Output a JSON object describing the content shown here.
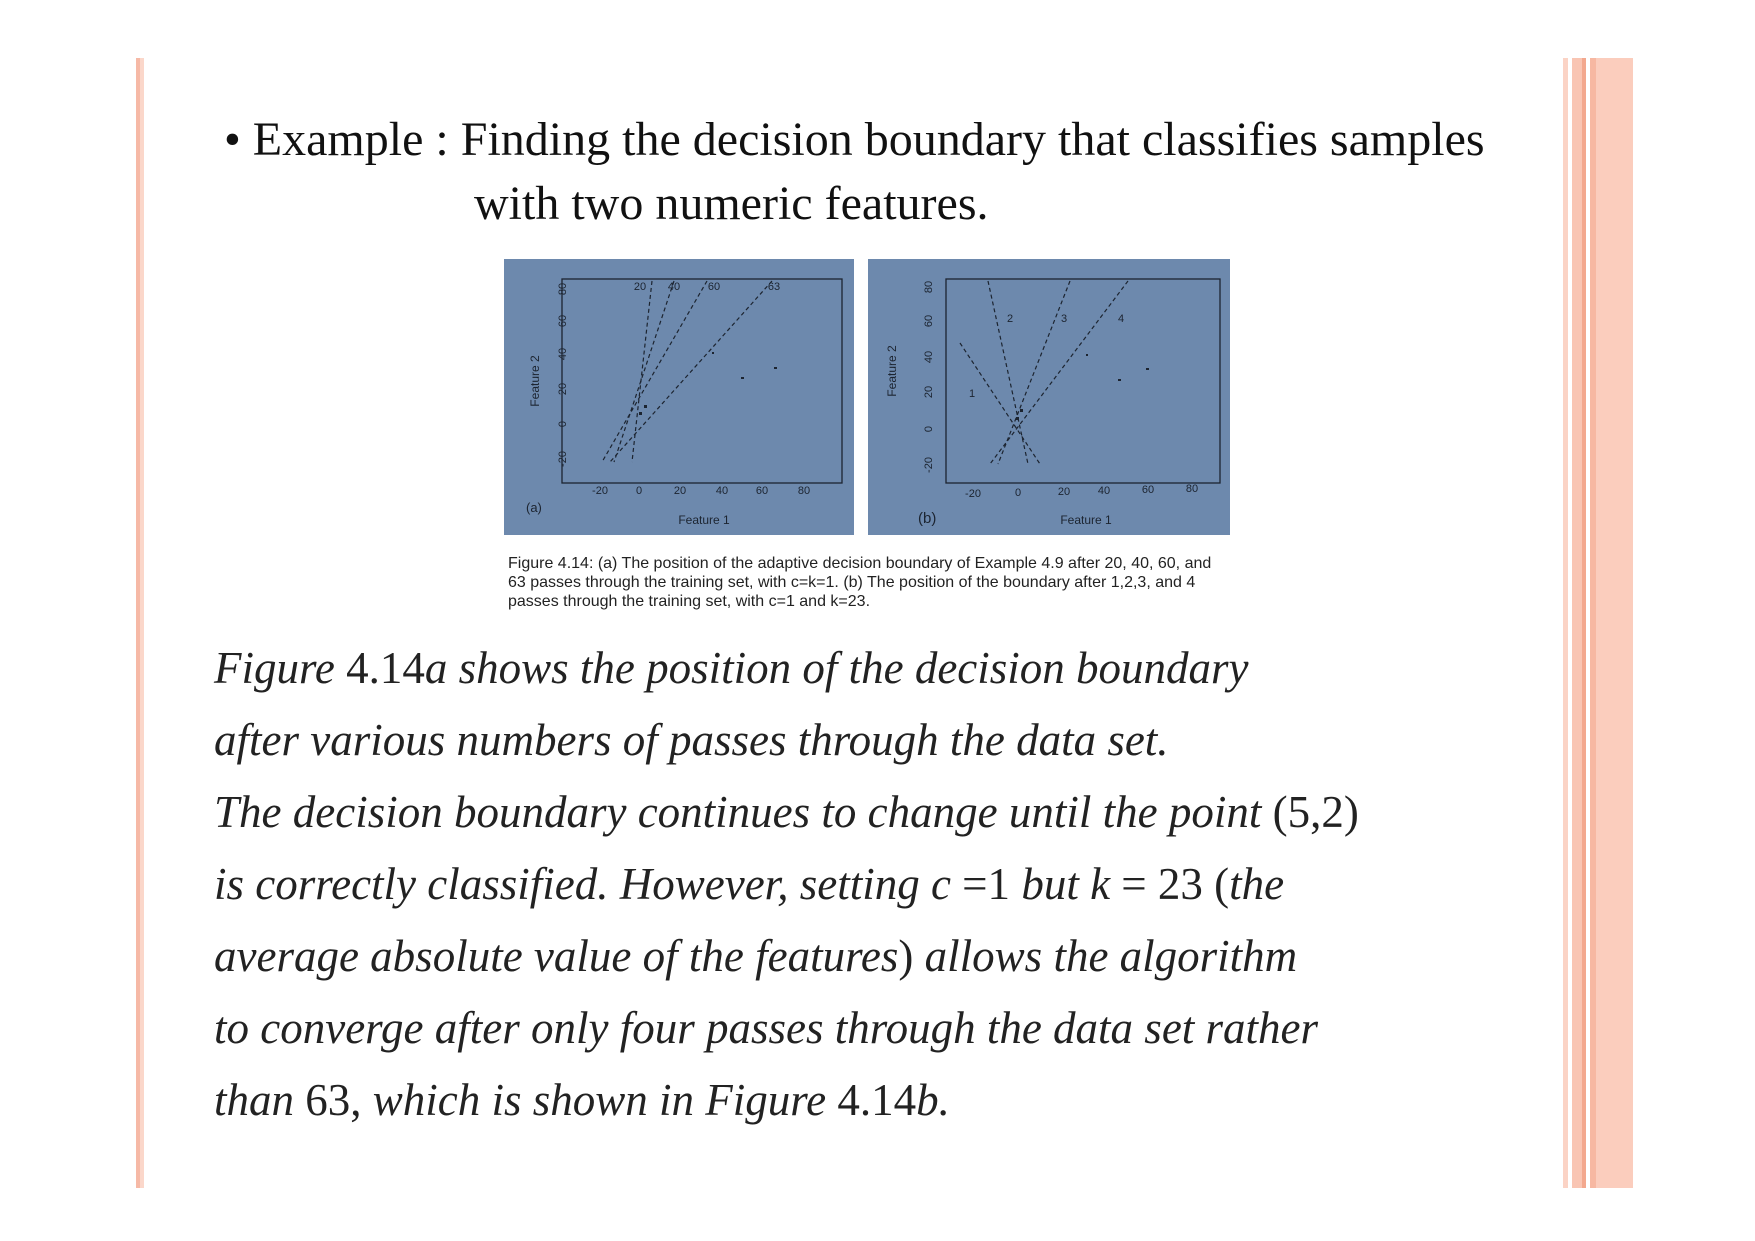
{
  "slide": {
    "bullet_prefix": "• Example : ",
    "title_line1": "Finding the decision boundary that classifies samples",
    "title_line2": "with two numeric features."
  },
  "figure_a": {
    "panel_label": "(a)",
    "xlabel": "Feature 1",
    "ylabel": "Feature 2",
    "x_ticks": [
      "-20",
      "0",
      "20",
      "40",
      "60",
      "80"
    ],
    "y_ticks": [
      "-20",
      "0",
      "20",
      "40",
      "60",
      "80"
    ],
    "line_labels": [
      "20",
      "40",
      "60",
      "63"
    ]
  },
  "figure_b": {
    "panel_label": "(b)",
    "xlabel": "Feature 1",
    "ylabel": "Feature 2",
    "x_ticks": [
      "-20",
      "0",
      "20",
      "40",
      "60",
      "80"
    ],
    "y_ticks": [
      "-20",
      "0",
      "20",
      "40",
      "60",
      "80"
    ],
    "line_labels": [
      "1",
      "2",
      "3",
      "4"
    ]
  },
  "caption": "Figure 4.14: (a) The position of the adaptive decision boundary of Example 4.9 after 20, 40, 60, and 63 passes through the training set, with c=k=1. (b) The position of the boundary after 1,2,3, and 4 passes through the training set, with c=1 and k=23.",
  "body": {
    "l1a": "Figure ",
    "l1b": "4.14",
    "l1c": "a shows the position of the decision boundary",
    "l2": "after various numbers of passes through the data set.",
    "l3a": "The decision boundary continues to change until the point ",
    "l3b": "(5,2)",
    "l4a": "is correctly classified. However, setting c ",
    "l4b": "=1",
    "l4c": " but k ",
    "l4d": "= 23 (",
    "l4e": "the",
    "l5a": "average absolute value of the features",
    "l5b": ")",
    "l5c": " allows the algorithm",
    "l6": "to converge after only four passes through the data set rather",
    "l7a": "than ",
    "l7b": "63,",
    "l7c": " which is shown in Figure ",
    "l7d": "4.14",
    "l7e": "b."
  },
  "colors": {
    "figure_bg": "#6d89ad",
    "accent_stripe": "#f6b9a6"
  }
}
